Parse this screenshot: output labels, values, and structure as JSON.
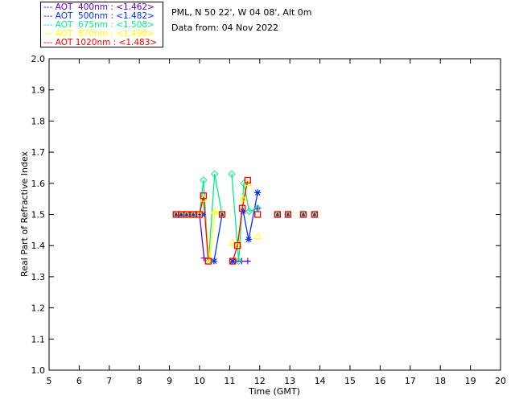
{
  "header": {
    "site": "PML, N 50 22', W 04 08', Alt 0m",
    "date": "Data from: 04 Nov 2022"
  },
  "chart_data": {
    "type": "scatter",
    "title": "",
    "xlabel": "Time (GMT)",
    "ylabel": "Real Part of Refractive Index",
    "xlim": [
      5,
      20
    ],
    "ylim": [
      1.0,
      2.0
    ],
    "xticks": [
      "5",
      "6",
      "7",
      "8",
      "9",
      "10",
      "11",
      "12",
      "13",
      "14",
      "15",
      "16",
      "17",
      "18",
      "19",
      "20"
    ],
    "yticks": [
      "1.0",
      "1.1",
      "1.2",
      "1.3",
      "1.4",
      "1.5",
      "1.6",
      "1.7",
      "1.8",
      "1.9",
      "2.0"
    ],
    "legend_position": "top-left-outside",
    "series": [
      {
        "name": "AOT  400nm",
        "label": "--- AOT  400nm : <1.462>",
        "color": "#6600cc",
        "marker": "plus",
        "x": [
          9.22,
          9.39,
          9.57,
          9.79,
          10.0,
          10.15,
          11.2,
          11.4,
          11.6,
          11.93,
          12.59,
          12.94,
          13.45,
          13.82
        ],
        "y": [
          1.5,
          1.5,
          1.5,
          1.5,
          1.5,
          1.36,
          1.35,
          1.35,
          1.35,
          1.52,
          1.5,
          1.5,
          1.5,
          1.5
        ]
      },
      {
        "name": "AOT  500nm",
        "label": "--- AOT  500nm : <1.482>",
        "color": "#0033ff",
        "marker": "asterisk",
        "x": [
          9.22,
          9.39,
          9.57,
          9.79,
          10.1,
          10.48,
          10.75,
          11.1,
          11.45,
          11.63,
          11.93,
          12.59,
          12.94,
          13.45,
          13.82
        ],
        "y": [
          1.5,
          1.5,
          1.5,
          1.5,
          1.5,
          1.35,
          1.5,
          1.35,
          1.51,
          1.42,
          1.57,
          1.5,
          1.5,
          1.5,
          1.5
        ]
      },
      {
        "name": "AOT  675nm",
        "label": "--- AOT  675nm : <1.508>",
        "color": "#00ee88",
        "marker": "diamond",
        "x": [
          9.22,
          9.39,
          9.57,
          9.79,
          10.0,
          10.13,
          10.3,
          10.5,
          10.75,
          11.07,
          11.3,
          11.47,
          11.65,
          11.93,
          12.59,
          12.94,
          13.45,
          13.82
        ],
        "y": [
          1.5,
          1.5,
          1.5,
          1.5,
          1.5,
          1.61,
          1.35,
          1.63,
          1.5,
          1.63,
          1.35,
          1.6,
          1.51,
          1.52,
          1.5,
          1.5,
          1.5,
          1.5
        ]
      },
      {
        "name": "AOT  870nm",
        "label": "--- AOT  870nm : <1.490>",
        "color": "#ffff00",
        "marker": "triangle",
        "x": [
          9.22,
          9.39,
          9.57,
          9.79,
          10.0,
          10.13,
          10.33,
          10.5,
          10.75,
          11.1,
          11.28,
          11.45,
          11.6,
          11.93,
          12.59,
          12.94,
          13.45,
          13.82
        ],
        "y": [
          1.5,
          1.5,
          1.5,
          1.5,
          1.5,
          1.55,
          1.35,
          1.51,
          1.5,
          1.41,
          1.4,
          1.55,
          1.6,
          1.43,
          1.5,
          1.5,
          1.5,
          1.5
        ]
      },
      {
        "name": "AOT 1020nm",
        "label": "--- AOT 1020nm : <1.483>",
        "color": "#ff0000",
        "marker": "square",
        "x": [
          9.22,
          9.39,
          9.57,
          9.79,
          10.0,
          10.13,
          10.29,
          10.75,
          11.1,
          11.26,
          11.42,
          11.6,
          11.93,
          12.59,
          12.94,
          13.45,
          13.82
        ],
        "y": [
          1.5,
          1.5,
          1.5,
          1.5,
          1.5,
          1.56,
          1.35,
          1.5,
          1.35,
          1.4,
          1.52,
          1.61,
          1.5,
          1.5,
          1.5,
          1.5,
          1.5
        ]
      }
    ]
  }
}
